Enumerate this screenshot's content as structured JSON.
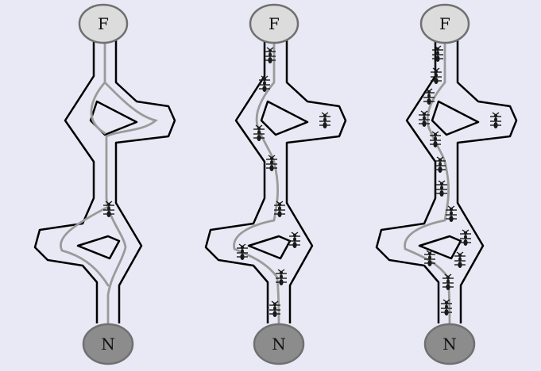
{
  "colors": {
    "background": "#e9e9f5",
    "food_node_fill": "#dcdcdc",
    "nest_node_fill": "#8c8c8c",
    "node_stroke": "#707070",
    "wall": "#000000",
    "trail": "#9a9a9a",
    "ant": "#1a1a1a"
  },
  "nodes": {
    "food_label": "F",
    "nest_label": "N"
  },
  "panels": [
    {
      "ants": [
        [
          137,
          264
        ]
      ],
      "trail_mode": "left-and-right"
    },
    {
      "ants": [
        [
          340,
          70
        ],
        [
          333,
          106
        ],
        [
          326,
          168
        ],
        [
          409,
          152
        ],
        [
          342,
          206
        ],
        [
          352,
          264
        ],
        [
          371,
          303
        ],
        [
          305,
          318
        ],
        [
          354,
          350
        ],
        [
          346,
          390
        ]
      ],
      "trail_mode": "through-left"
    },
    {
      "ants": [
        [
          551,
          68
        ],
        [
          549,
          96
        ],
        [
          540,
          122
        ],
        [
          534,
          150
        ],
        [
          548,
          176
        ],
        [
          624,
          152
        ],
        [
          554,
          208
        ],
        [
          556,
          238
        ],
        [
          568,
          270
        ],
        [
          586,
          300
        ],
        [
          541,
          326
        ],
        [
          579,
          328
        ],
        [
          564,
          356
        ],
        [
          562,
          388
        ]
      ],
      "trail_mode": "through-left"
    }
  ]
}
